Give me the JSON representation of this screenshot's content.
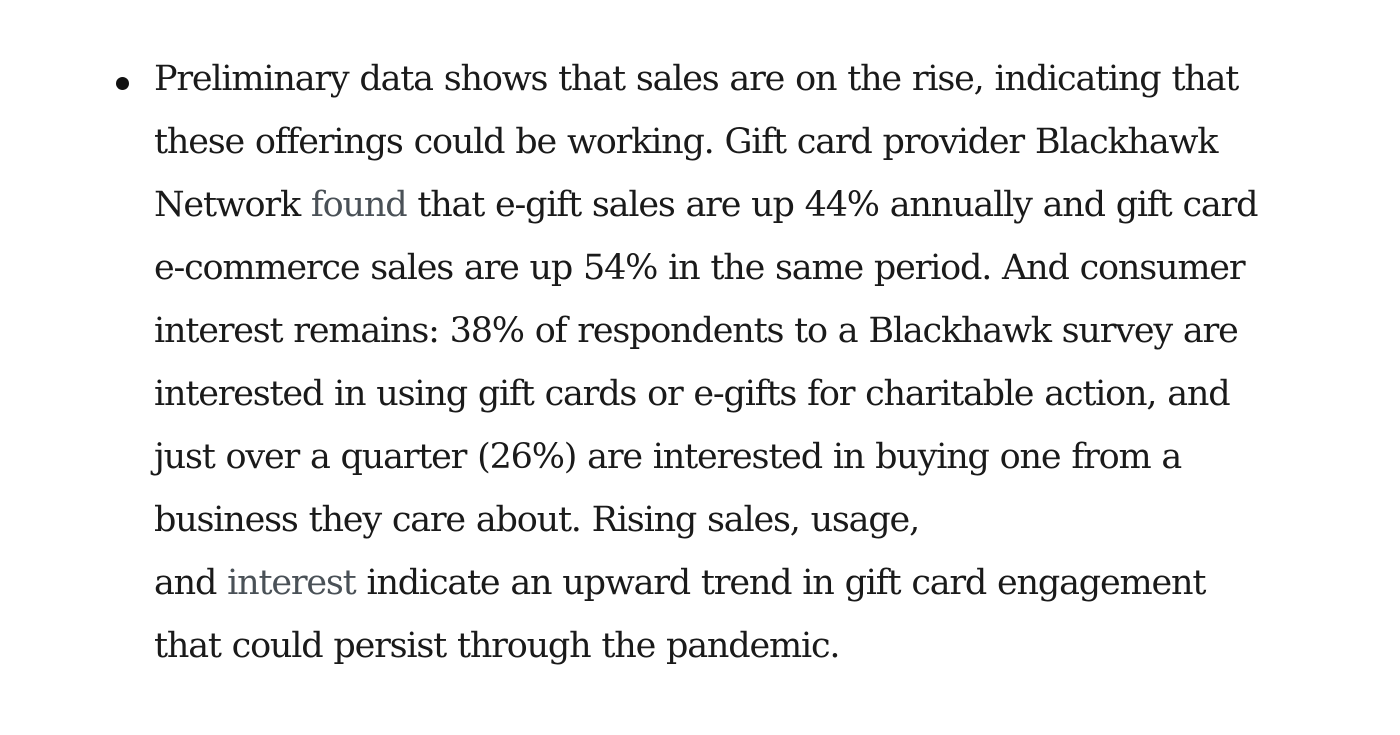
{
  "bullet": {
    "lines": [
      {
        "text": "Preliminary data shows that sales are on the rise, indicating that"
      },
      {
        "text": "these offerings could be working. Gift card provider Blackhawk"
      },
      {
        "before": "Network ",
        "link": "found",
        "after": " that e-gift sales are up 44% annually and gift card"
      },
      {
        "text": "e-commerce sales are up 54% in the same period. And consumer"
      },
      {
        "text": "interest remains: 38% of respondents to a Blackhawk survey are"
      },
      {
        "text": "interested in using gift cards or e-gifts for charitable action, and"
      },
      {
        "text": "just over a quarter (26%) are interested in buying one from a"
      },
      {
        "text": "business they care about. Rising sales, usage,"
      },
      {
        "before": "and ",
        "link": "interest",
        "after": " indicate an upward trend in gift card engagement"
      },
      {
        "text": "that could persist through the pandemic."
      }
    ]
  },
  "colors": {
    "text": "#1a1a1a",
    "link": "#4a5157",
    "background": "#ffffff"
  }
}
